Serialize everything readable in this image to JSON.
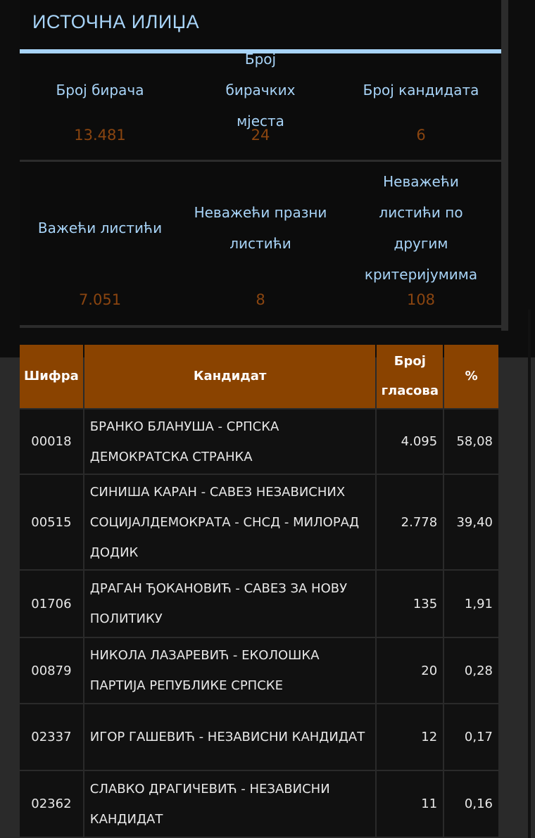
{
  "municipality": "ИСТОЧНА ИЛИЏА",
  "stats": [
    {
      "label": "Број бирача",
      "value": "13.481"
    },
    {
      "label": "Број бирачких мјеста",
      "value": "24"
    },
    {
      "label": "Број кандидата",
      "value": "6"
    },
    {
      "label": "Важећи листићи",
      "value": "7.051"
    },
    {
      "label": "Неважећи празни листићи",
      "value": "8"
    },
    {
      "label": "Неважећи листићи по другим критеријумима",
      "value": "108"
    }
  ],
  "table": {
    "headers": [
      "Шифра",
      "Кандидат",
      "Број гласова",
      "%"
    ],
    "rows": [
      {
        "code": "00018",
        "candidate": "БРАНКО БЛАНУША - СРПСКА ДЕМОКРАТСКА СТРАНКА",
        "votes": "4.095",
        "percent": "58,08"
      },
      {
        "code": "00515",
        "candidate": "СИНИША КАРАН - САВЕЗ НЕЗАВИСНИХ СОЦИЈАЛДЕМОКРАТА - СНСД - МИЛОРАД ДОДИК",
        "votes": "2.778",
        "percent": "39,40"
      },
      {
        "code": "01706",
        "candidate": "ДРАГАН ЂОКАНОВИЋ - САВЕЗ ЗА НОВУ ПОЛИТИКУ",
        "votes": "135",
        "percent": "1,91"
      },
      {
        "code": "00879",
        "candidate": "НИКОЛА ЛАЗАРЕВИЋ - ЕКОЛОШКА ПАРТИЈА РЕПУБЛИКЕ СРПСКЕ",
        "votes": "20",
        "percent": "0,28"
      },
      {
        "code": "02337",
        "candidate": "ИГОР ГАШЕВИЋ - НЕЗАВИСНИ КАНДИДАТ",
        "votes": "12",
        "percent": "0,17"
      },
      {
        "code": "02362",
        "candidate": "СЛАВКО ДРАГИЧЕВИЋ - НЕЗАВИСНИ КАНДИДАТ",
        "votes": "11",
        "percent": "0,16"
      }
    ]
  },
  "colors": {
    "accent": "#a8d4f8",
    "value": "#8a4510",
    "header": "#8a4300"
  }
}
